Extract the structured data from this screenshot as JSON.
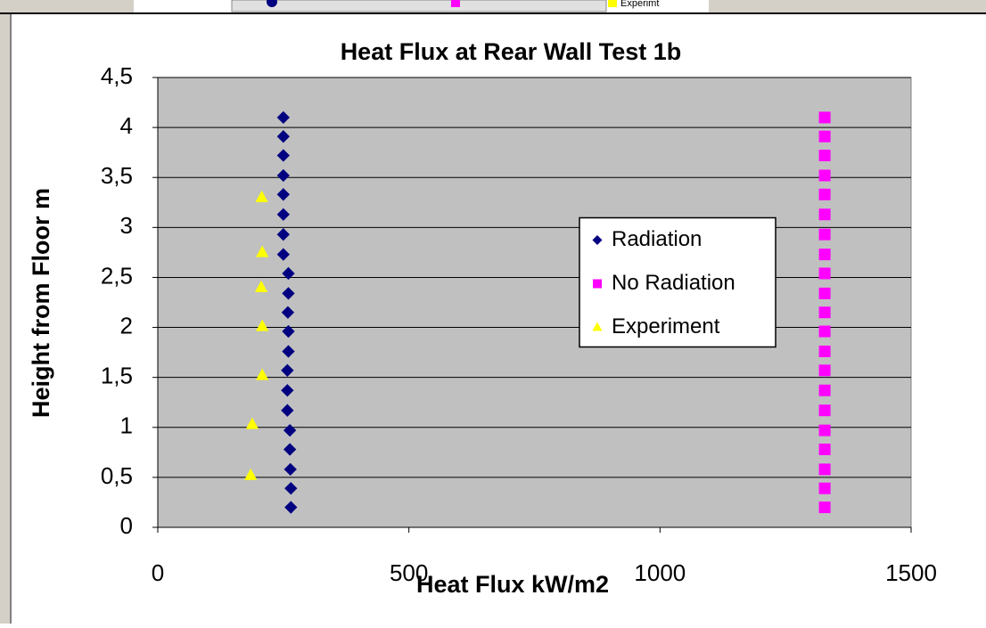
{
  "toolbar": {
    "label": "Experimt"
  },
  "chart_data": {
    "type": "scatter",
    "title": "Heat Flux at Rear Wall Test 1b",
    "xlabel": "Heat Flux kW/m2",
    "ylabel": "Height from Floor m",
    "xlim": [
      0,
      1500
    ],
    "xticks": [
      0,
      500,
      1000,
      1500
    ],
    "ylim": [
      0,
      4.5
    ],
    "yticks": [
      0,
      {
        "value": 0.5,
        "label": "0,5"
      },
      1,
      {
        "value": 1.5,
        "label": "1,5"
      },
      2,
      {
        "value": 2.5,
        "label": "2,5"
      },
      3,
      {
        "value": 3.5,
        "label": "3,5"
      },
      4,
      {
        "value": 4.5,
        "label": "4,5"
      }
    ],
    "grid": true,
    "legend": "center-right",
    "series": [
      {
        "name": "Radiation",
        "color": "#000080",
        "marker": "diamond",
        "x": [
          265,
          265,
          264,
          263,
          263,
          258,
          258,
          258,
          260,
          260,
          259,
          260,
          260,
          250,
          250,
          250,
          250,
          250,
          250,
          250,
          250
        ],
        "values": [
          0.2,
          0.39,
          0.58,
          0.78,
          0.97,
          1.17,
          1.37,
          1.57,
          1.76,
          1.96,
          2.15,
          2.34,
          2.54,
          2.73,
          2.93,
          3.13,
          3.33,
          3.52,
          3.72,
          3.91,
          4.1
        ]
      },
      {
        "name": "No Radiation",
        "color": "#ff00ff",
        "marker": "square",
        "x": [
          1328,
          1328,
          1328,
          1328,
          1328,
          1328,
          1328,
          1328,
          1328,
          1328,
          1328,
          1328,
          1328,
          1328,
          1328,
          1328,
          1328,
          1328,
          1328,
          1328,
          1328
        ],
        "values": [
          0.2,
          0.39,
          0.58,
          0.78,
          0.97,
          1.17,
          1.37,
          1.57,
          1.76,
          1.96,
          2.15,
          2.34,
          2.54,
          2.73,
          2.93,
          3.13,
          3.33,
          3.52,
          3.72,
          3.91,
          4.1
        ]
      },
      {
        "name": "Experiment",
        "color": "#ffff00",
        "marker": "triangle",
        "x": [
          185,
          188,
          208,
          208,
          206,
          208,
          207
        ],
        "values": [
          0.52,
          1.03,
          1.52,
          2.01,
          2.4,
          2.75,
          3.3
        ]
      }
    ]
  }
}
